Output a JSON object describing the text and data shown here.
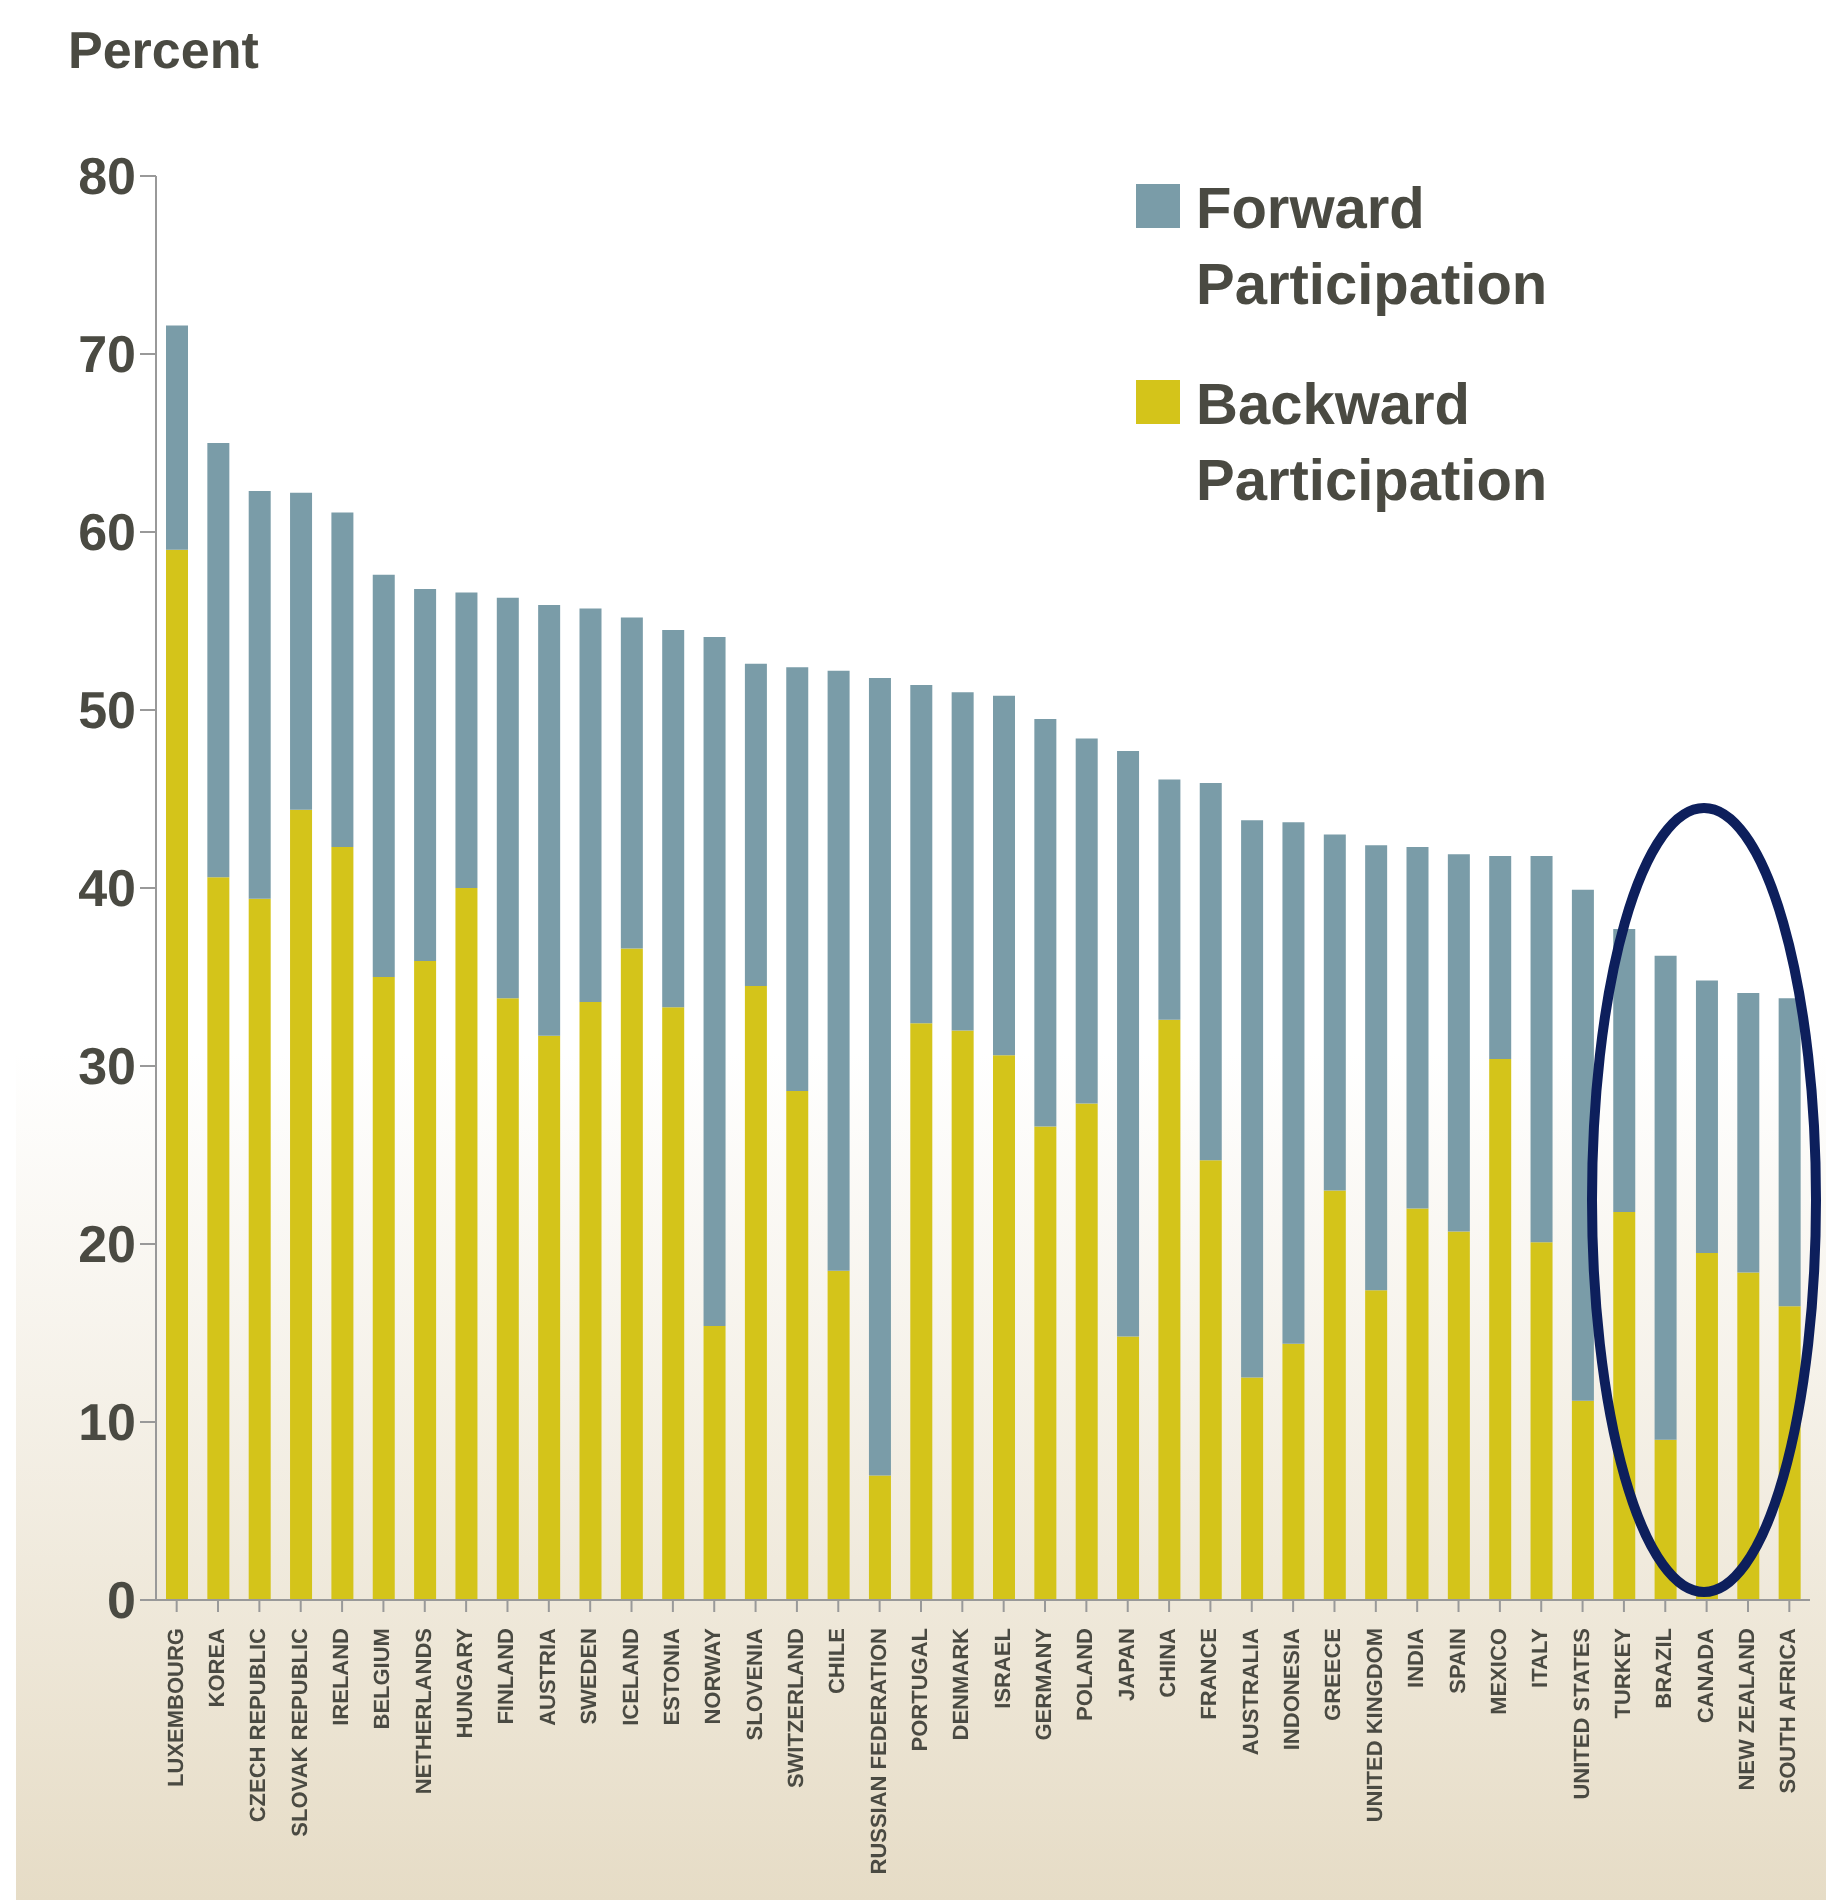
{
  "chart_data": {
    "type": "bar",
    "stacked": true,
    "ylabel": "Percent",
    "ylim": [
      0,
      80
    ],
    "yticks": [
      0,
      10,
      20,
      30,
      40,
      50,
      60,
      70,
      80
    ],
    "grid": false,
    "legend": "top right",
    "categories": [
      "LUXEMBOURG",
      "KOREA",
      "CZECH REPUBLIC",
      "SLOVAK REPUBLIC",
      "IRELAND",
      "BELGIUM",
      "NETHERLANDS",
      "HUNGARY",
      "FINLAND",
      "AUSTRIA",
      "SWEDEN",
      "ICELAND",
      "ESTONIA",
      "NORWAY",
      "SLOVENIA",
      "SWITZERLAND",
      "CHILE",
      "RUSSIAN FEDERATION",
      "PORTUGAL",
      "DENMARK",
      "ISRAEL",
      "GERMANY",
      "POLAND",
      "JAPAN",
      "CHINA",
      "FRANCE",
      "AUSTRALIA",
      "INDONESIA",
      "GREECE",
      "UNITED KINGDOM",
      "INDIA",
      "SPAIN",
      "MEXICO",
      "ITALY",
      "UNITED STATES",
      "TURKEY",
      "BRAZIL",
      "CANADA",
      "NEW ZEALAND",
      "SOUTH AFRICA"
    ],
    "series": [
      {
        "name": "Backward Participation",
        "color": "#d4c41a",
        "values": [
          59,
          40.6,
          39.4,
          44.4,
          42.3,
          35,
          35.9,
          40,
          33.8,
          31.7,
          33.6,
          36.6,
          33.3,
          15.4,
          34.5,
          28.6,
          18.5,
          7,
          32.4,
          32,
          30.6,
          26.6,
          27.9,
          14.8,
          32.6,
          24.7,
          12.5,
          14.4,
          23,
          17.4,
          22,
          20.7,
          30.4,
          20.1,
          11.2,
          21.8,
          9,
          19.5,
          18.4,
          16.5
        ]
      },
      {
        "name": "Forward Participation",
        "color": "#7a9ca8",
        "values": [
          12.6,
          24.4,
          22.9,
          17.8,
          18.8,
          22.6,
          20.9,
          16.6,
          22.5,
          24.2,
          22.1,
          18.6,
          21.2,
          38.7,
          18.1,
          23.8,
          33.7,
          44.8,
          19,
          19,
          20.2,
          22.9,
          20.5,
          32.9,
          13.5,
          21.2,
          31.3,
          29.3,
          20,
          25,
          20.3,
          21.2,
          11.4,
          21.7,
          28.7,
          15.9,
          27.2,
          15.3,
          15.7,
          17.3
        ]
      }
    ]
  }
}
